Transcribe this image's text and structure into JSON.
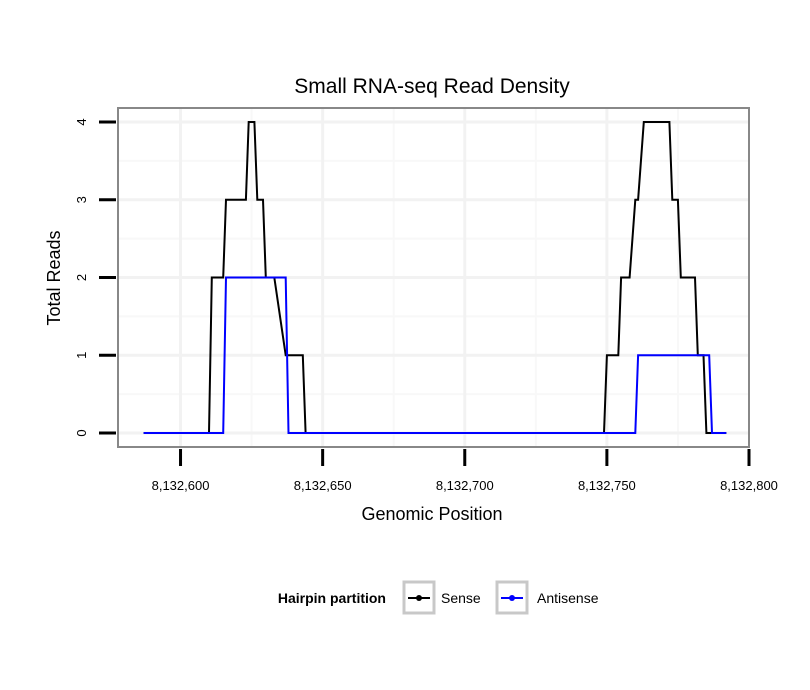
{
  "chart_data": {
    "type": "line",
    "title": "Small RNA-seq Read Density",
    "xlabel": "Genomic Position",
    "ylabel": "Total Reads",
    "xlim": [
      8132578,
      8132800
    ],
    "ylim": [
      -0.18,
      4.18
    ],
    "xticks": [
      8132600,
      8132650,
      8132700,
      8132750,
      8132800
    ],
    "xtick_labels": [
      "8,132,600",
      "8,132,650",
      "8,132,700",
      "8,132,750",
      "8,132,800"
    ],
    "yticks": [
      0,
      1,
      2,
      3,
      4
    ],
    "ytick_labels": [
      "0",
      "1",
      "2",
      "3",
      "4"
    ],
    "grid": true,
    "legend": {
      "title": "Hairpin partition",
      "position": "bottom",
      "entries": [
        "Sense",
        "Antisense"
      ]
    },
    "series": [
      {
        "name": "Sense",
        "color": "#000000",
        "x": [
          8132587,
          8132610,
          8132611,
          8132615,
          8132616,
          8132622,
          8132623,
          8132624,
          8132626,
          8132627,
          8132629,
          8132630,
          8132632,
          8132633,
          8132637,
          8132638,
          8132639,
          8132643,
          8132644,
          8132749,
          8132750,
          8132754,
          8132755,
          8132757,
          8132758,
          8132760,
          8132761,
          8132763,
          8132764,
          8132772,
          8132773,
          8132775,
          8132776,
          8132781,
          8132782,
          8132784,
          8132785,
          8132792
        ],
        "y": [
          0,
          0,
          2,
          2,
          3,
          3,
          3,
          4,
          4,
          3,
          3,
          2,
          2,
          2,
          1,
          1,
          1,
          1,
          0,
          0,
          1,
          1,
          2,
          2,
          2,
          3,
          3,
          4,
          4,
          4,
          3,
          3,
          2,
          2,
          1,
          1,
          0,
          0
        ]
      },
      {
        "name": "Antisense",
        "color": "#0000ff",
        "x": [
          8132587,
          8132615,
          8132616,
          8132637,
          8132638,
          8132760,
          8132761,
          8132786,
          8132787,
          8132792
        ],
        "y": [
          0,
          0,
          2,
          2,
          0,
          0,
          1,
          1,
          0,
          0
        ]
      }
    ]
  },
  "colors": {
    "panel_border": "#888888",
    "grid_major": "#f2f2f2",
    "grid_minor": "#f8f8f8",
    "legend_key_border": "#c8c8c8"
  }
}
